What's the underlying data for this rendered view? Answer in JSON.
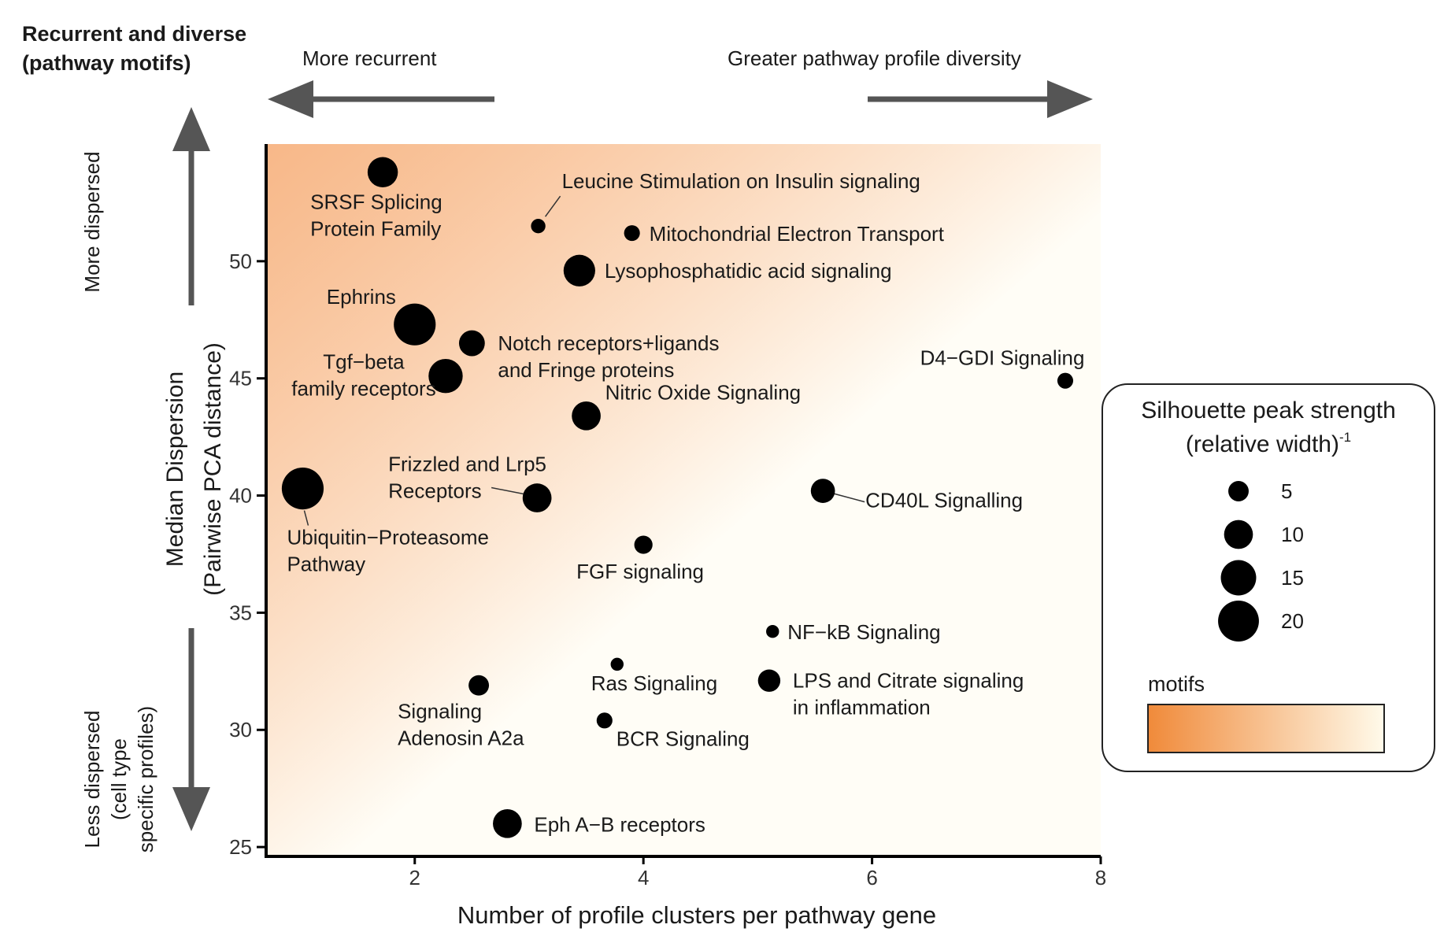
{
  "headers": {
    "top_left": [
      "Recurrent and diverse",
      "(pathway motifs)"
    ],
    "left_arrow_label": "More recurrent",
    "right_arrow_label": "Greater pathway profile diversity",
    "up_arrow_label": "More dispersed",
    "down_arrow_label": [
      "Less dispersed",
      "(cell type",
      "specific profiles)"
    ]
  },
  "chart_data": {
    "type": "scatter",
    "title": "",
    "xlabel": "Number of profile clusters per pathway gene",
    "ylabel": [
      "Median Dispersion",
      "(Pairwise PCA distance)"
    ],
    "xlim": [
      0.7,
      8.0
    ],
    "ylim": [
      24.6,
      55.0
    ],
    "x_ticks": [
      2,
      4,
      6,
      8
    ],
    "y_ticks": [
      25,
      30,
      35,
      40,
      45,
      50
    ],
    "background_gradient": {
      "from": "#f5a061",
      "to": "#fffdf6",
      "direction": "top-left to bottom-right"
    },
    "size_legend": {
      "title_line1": "Silhouette peak strength",
      "title_line2": "(relative width)",
      "title_superscript": "-1",
      "entries": [
        5,
        10,
        15,
        20
      ],
      "gradient_label": "motifs",
      "gradient_from": "#f08a3a",
      "gradient_to": "#fffaea"
    },
    "points": [
      {
        "label": "SRSF Splicing\nProtein Family",
        "x": 1.72,
        "y": 53.8,
        "size": 11
      },
      {
        "label": "Leucine Stimulation on Insulin signaling",
        "x": 3.08,
        "y": 51.5,
        "size": 2.5
      },
      {
        "label": "Mitochondrial Electron Transport",
        "x": 3.9,
        "y": 51.2,
        "size": 3
      },
      {
        "label": "Lysophosphatidic acid signaling",
        "x": 3.44,
        "y": 49.6,
        "size": 12
      },
      {
        "label": "Ephrins",
        "x": 2.0,
        "y": 47.3,
        "size": 21
      },
      {
        "label": "Notch receptors+ligands\nand Fringe proteins",
        "x": 2.5,
        "y": 46.5,
        "size": 8
      },
      {
        "label": "Tgf−beta\nfamily receptors",
        "x": 2.27,
        "y": 45.1,
        "size": 14
      },
      {
        "label": "D4−GDI Signaling",
        "x": 7.69,
        "y": 44.9,
        "size": 3
      },
      {
        "label": "Nitric Oxide Signaling",
        "x": 3.5,
        "y": 43.4,
        "size": 10
      },
      {
        "label": "Ubiquitin−Proteasome\nPathway",
        "x": 1.02,
        "y": 40.3,
        "size": 21
      },
      {
        "label": "CD40L Signalling",
        "x": 5.57,
        "y": 40.2,
        "size": 7
      },
      {
        "label": "Frizzled and Lrp5\nReceptors",
        "x": 3.07,
        "y": 39.9,
        "size": 10
      },
      {
        "label": "FGF signaling",
        "x": 4.0,
        "y": 37.9,
        "size": 4
      },
      {
        "label": "NF−kB Signaling",
        "x": 5.13,
        "y": 34.2,
        "size": 2
      },
      {
        "label": "Ras Signaling",
        "x": 3.77,
        "y": 32.8,
        "size": 2
      },
      {
        "label": "LPS and Citrate signaling\nin inflammation",
        "x": 5.1,
        "y": 32.1,
        "size": 6
      },
      {
        "label": "Signaling\nAdenosin A2a",
        "x": 2.56,
        "y": 31.9,
        "size": 5
      },
      {
        "label": "BCR Signaling",
        "x": 3.66,
        "y": 30.4,
        "size": 3
      },
      {
        "label": "Eph A−B receptors",
        "x": 2.81,
        "y": 26.0,
        "size": 10
      }
    ]
  }
}
